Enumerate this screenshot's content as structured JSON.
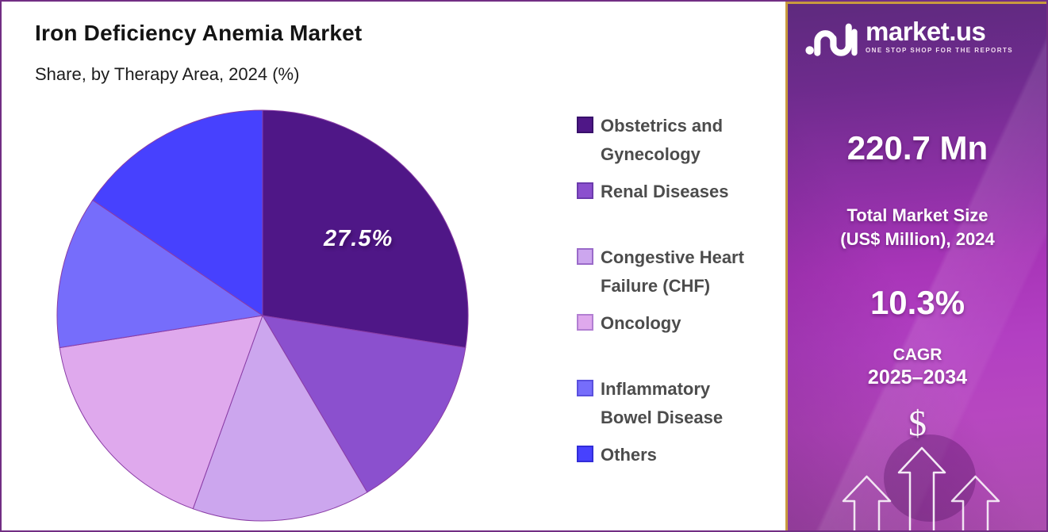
{
  "header": {
    "title": "Iron Deficiency Anemia Market",
    "subtitle": "Share, by Therapy Area, 2024 (%)"
  },
  "chart_data": {
    "type": "pie",
    "title": "Iron Deficiency Anemia Market",
    "subtitle": "Share, by Therapy Area, 2024 (%)",
    "unit": "percent share",
    "start_angle_deg": 0,
    "direction": "clockwise",
    "legend_position": "right",
    "segments": [
      {
        "label": "Obstetrics and Gynecology",
        "value": 27.5,
        "color": "#4F1787",
        "displayed_label": "27.5%"
      },
      {
        "label": "Renal Diseases",
        "value": 14.0,
        "color": "#8B50CE",
        "displayed_label": ""
      },
      {
        "label": "Congestive Heart Failure (CHF)",
        "value": 14.0,
        "color": "#CCA6EE",
        "displayed_label": ""
      },
      {
        "label": "Oncology",
        "value": 17.0,
        "color": "#DFA9ED",
        "displayed_label": ""
      },
      {
        "label": "Inflammatory Bowel Disease",
        "value": 12.0,
        "color": "#766DFB",
        "displayed_label": ""
      },
      {
        "label": "Others",
        "value": 15.5,
        "color": "#4741FE",
        "displayed_label": ""
      }
    ],
    "note": "only the 27.5% slice is labeled in the figure; remaining slice values estimated from arc angles"
  },
  "legend": {
    "items": [
      {
        "lines": [
          "Obstetrics and",
          "Gynecology"
        ],
        "color": "#4F1787",
        "border": "#38106B"
      },
      {
        "lines": [
          "Renal Diseases",
          ""
        ],
        "color": "#8B50CE",
        "border": "#6C3BAD"
      },
      {
        "lines": [
          "Congestive Heart",
          "Failure (CHF)"
        ],
        "color": "#CCA6EE",
        "border": "#9A6AC9"
      },
      {
        "lines": [
          "Oncology",
          ""
        ],
        "color": "#DFA9ED",
        "border": "#B27FD2"
      },
      {
        "lines": [
          "Inflammatory",
          "Bowel Disease"
        ],
        "color": "#766DFB",
        "border": "#5A50DE"
      },
      {
        "lines": [
          "Others",
          ""
        ],
        "color": "#4741FE",
        "border": "#322DD8"
      }
    ]
  },
  "sidebar": {
    "logo": {
      "brand": "market.us",
      "tagline": "ONE STOP SHOP FOR THE REPORTS"
    },
    "market_size": {
      "value": "220.7 Mn",
      "label_line1": "Total Market Size",
      "label_line2": "(US$ Million), 2024"
    },
    "cagr": {
      "value": "10.3%",
      "label_line1": "CAGR",
      "label_line2": "2025–2034"
    },
    "dollar_symbol": "$"
  },
  "colors": {
    "canvas_border": "#722E84",
    "panel_border": "#C89A3E",
    "panel_gradient_top": "#5E2A7E",
    "panel_gradient_mid": "#A835B8",
    "panel_gradient_bottom": "#AB4DAE",
    "pie_outline": "#8A3DA6",
    "slice_label_text": "#FFFFFF",
    "legend_text": "#4C4C4C"
  }
}
